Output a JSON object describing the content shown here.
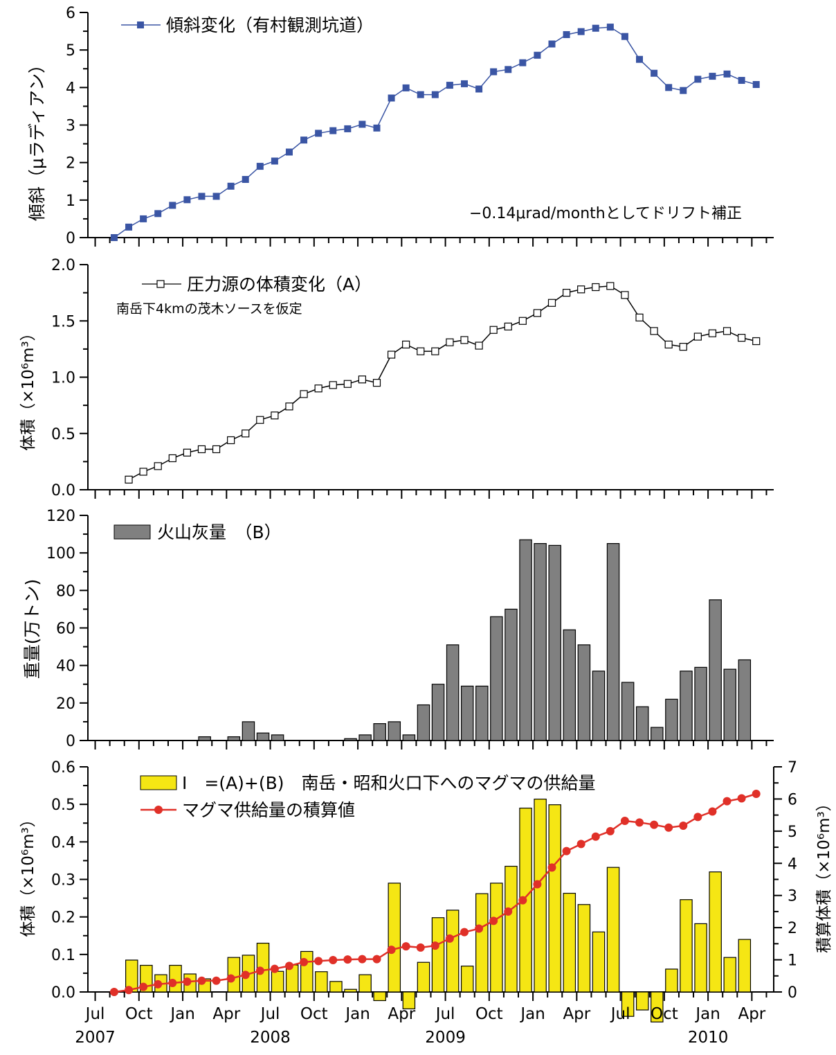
{
  "chart_data": [
    {
      "type": "line",
      "ylabel": "傾斜（μラディアン）",
      "ylim": [
        0,
        6
      ],
      "yticks": [
        0,
        1,
        2,
        3,
        4,
        5,
        6
      ],
      "legend": "傾斜変化（有村観測坑道）",
      "annotation": "−0.14μrad/monthとしてドリフト補正",
      "marker": "filled-square",
      "color": "#3a55a4",
      "series": [
        {
          "name": "傾斜変化（有村観測坑道）",
          "x": [
            8.3,
            9.3,
            10.3,
            11.3,
            12.3,
            13.3,
            14.3,
            15.3,
            16.3,
            17.3,
            18.3,
            19.3,
            20.3,
            21.3,
            22.3,
            23.3,
            24.3,
            25.3,
            26.3,
            27.3,
            28.3,
            29.3,
            30.3,
            31.3,
            32.3,
            33.3,
            34.3,
            35.3,
            36.3,
            37.3,
            38.3,
            39.3,
            40.3,
            41.3,
            42.3,
            43.3,
            44.3,
            45.3,
            46.3,
            47.3,
            48.3,
            49.3,
            50.3,
            51.3,
            52.3
          ],
          "values": [
            0.0,
            0.28,
            0.5,
            0.64,
            0.86,
            1.01,
            1.1,
            1.1,
            1.37,
            1.55,
            1.9,
            2.04,
            2.28,
            2.6,
            2.78,
            2.85,
            2.9,
            3.02,
            2.92,
            3.72,
            3.99,
            3.81,
            3.81,
            4.06,
            4.1,
            3.96,
            4.42,
            4.48,
            4.66,
            4.86,
            5.16,
            5.41,
            5.49,
            5.58,
            5.61,
            5.36,
            4.75,
            4.38,
            4.0,
            3.92,
            4.22,
            4.3,
            4.36,
            4.19,
            4.08
          ]
        }
      ]
    },
    {
      "type": "line",
      "ylabel": "体積（×10⁶m³）",
      "ylim": [
        0,
        2
      ],
      "yticks": [
        "0.0",
        "0.5",
        "1.0",
        "1.5",
        "2.0"
      ],
      "legend": "圧力源の体積変化（A）",
      "annotation": "南岳下4kmの茂木ソースを仮定",
      "marker": "open-square",
      "color": "#000000",
      "series": [
        {
          "name": "圧力源の体積変化（A）",
          "x": [
            9.3,
            10.3,
            11.3,
            12.3,
            13.3,
            14.3,
            15.3,
            16.3,
            17.3,
            18.3,
            19.3,
            20.3,
            21.3,
            22.3,
            23.3,
            24.3,
            25.3,
            26.3,
            27.3,
            28.3,
            29.3,
            30.3,
            31.3,
            32.3,
            33.3,
            34.3,
            35.3,
            36.3,
            37.3,
            38.3,
            39.3,
            40.3,
            41.3,
            42.3,
            43.3,
            44.3,
            45.3,
            46.3,
            47.3,
            48.3,
            49.3,
            50.3,
            51.3,
            52.3
          ],
          "values": [
            0.09,
            0.16,
            0.21,
            0.28,
            0.33,
            0.36,
            0.36,
            0.44,
            0.5,
            0.62,
            0.66,
            0.74,
            0.85,
            0.9,
            0.93,
            0.94,
            0.98,
            0.95,
            1.2,
            1.29,
            1.23,
            1.23,
            1.31,
            1.33,
            1.28,
            1.42,
            1.45,
            1.5,
            1.57,
            1.66,
            1.75,
            1.78,
            1.8,
            1.81,
            1.73,
            1.53,
            1.41,
            1.29,
            1.27,
            1.36,
            1.39,
            1.41,
            1.35,
            1.32
          ]
        }
      ]
    },
    {
      "type": "bar",
      "ylabel": "重量(万トン)",
      "ylim": [
        0,
        120
      ],
      "yticks": [
        0,
        20,
        40,
        60,
        80,
        100,
        120
      ],
      "legend": "火山灰量　（B）",
      "color": "#808080",
      "series": [
        {
          "name": "火山灰量（B）",
          "x": [
            14,
            16,
            17,
            18,
            19,
            24,
            25,
            26,
            27,
            28,
            29,
            30,
            31,
            32,
            33,
            34,
            35,
            36,
            37,
            38,
            39,
            40,
            41,
            42,
            43,
            44,
            45,
            46,
            47,
            48,
            49,
            50,
            51,
            52
          ],
          "values": [
            2,
            2,
            10,
            4,
            3,
            1,
            3,
            9,
            10,
            3,
            19,
            30,
            51,
            29,
            29,
            66,
            70,
            107,
            105,
            104,
            59,
            51,
            37,
            105,
            31,
            18,
            7,
            22,
            37,
            39,
            75,
            38,
            43,
            0
          ]
        }
      ]
    },
    {
      "type": "bar",
      "ylabel": "体積（×10⁶m³）",
      "ylim": [
        0,
        0.6
      ],
      "yticks": [
        "0.0",
        "0.1",
        "0.2",
        "0.3",
        "0.4",
        "0.5",
        "0.6"
      ],
      "y2label": "積算体積（×10⁶m³）",
      "y2lim": [
        0,
        7
      ],
      "y2ticks": [
        0,
        1,
        2,
        3,
        4,
        5,
        6,
        7
      ],
      "legend_bar": "I　=(A)+(B)　南岳・昭和火口下へのマグマの供給量",
      "legend_line": "マグマ供給量の積算値",
      "bar_color": "#f5e614",
      "line_color": "#e03028",
      "series": [
        {
          "name": "I　=(A)+(B)　南岳・昭和火口下へのマグマの供給量",
          "x": [
            9,
            10,
            11,
            12,
            13,
            14,
            16,
            17,
            18,
            19,
            20,
            21,
            22,
            23,
            24,
            25,
            26,
            27,
            28,
            29,
            30,
            31,
            32,
            33,
            34,
            35,
            36,
            37,
            38,
            39,
            40,
            41,
            42,
            43,
            44,
            45,
            46,
            47,
            48,
            49,
            50,
            51
          ],
          "values": [
            0.085,
            0.071,
            0.046,
            0.071,
            0.048,
            0.035,
            0.092,
            0.098,
            0.13,
            0.055,
            0.072,
            0.108,
            0.054,
            0.028,
            0.007,
            0.046,
            -0.023,
            0.29,
            -0.045,
            0.079,
            0.198,
            0.218,
            0.069,
            0.262,
            0.29,
            0.335,
            0.49,
            0.514,
            0.499,
            0.263,
            0.233,
            0.16,
            0.332,
            -0.065,
            -0.048,
            -0.08,
            0.061,
            0.246,
            0.182,
            0.32,
            0.092,
            0.14
          ]
        },
        {
          "name": "マグマ供給量の積算値",
          "axis": "right",
          "x": [
            8.3,
            9.3,
            10.3,
            11.3,
            12.3,
            13.3,
            14.3,
            15.3,
            16.3,
            17.3,
            18.3,
            19.3,
            20.3,
            21.3,
            22.3,
            23.3,
            24.3,
            25.3,
            26.3,
            27.3,
            28.3,
            29.3,
            30.3,
            31.3,
            32.3,
            33.3,
            34.3,
            35.3,
            36.3,
            37.3,
            38.3,
            39.3,
            40.3,
            41.3,
            42.3,
            43.3,
            44.3,
            45.3,
            46.3,
            47.3,
            48.3,
            49.3,
            50.3,
            51.3,
            52.3
          ],
          "values": [
            0.0,
            0.06,
            0.16,
            0.24,
            0.28,
            0.32,
            0.35,
            0.35,
            0.42,
            0.53,
            0.66,
            0.72,
            0.81,
            0.93,
            0.96,
            0.99,
            1.01,
            1.02,
            1.02,
            1.31,
            1.42,
            1.38,
            1.44,
            1.66,
            1.86,
            1.97,
            2.21,
            2.5,
            2.85,
            3.35,
            3.87,
            4.38,
            4.6,
            4.83,
            5.0,
            5.32,
            5.27,
            5.2,
            5.11,
            5.17,
            5.44,
            5.61,
            5.93,
            6.02,
            6.16
          ]
        }
      ],
      "x_tick_labels": [
        "Jul",
        "Oct",
        "Jan",
        "Apr",
        "Jul",
        "Oct",
        "Jan",
        "Apr",
        "Jul",
        "Oct",
        "Jan",
        "Apr",
        "Jul",
        "Oct",
        "Jan",
        "Apr"
      ],
      "x_tick_positions": [
        7,
        10,
        13,
        16,
        19,
        22,
        25,
        28,
        31,
        34,
        37,
        40,
        43,
        46,
        49,
        52
      ],
      "year_labels": [
        "2007",
        "2008",
        "2009",
        "2010"
      ],
      "year_positions": [
        7,
        19,
        31,
        49
      ]
    }
  ]
}
